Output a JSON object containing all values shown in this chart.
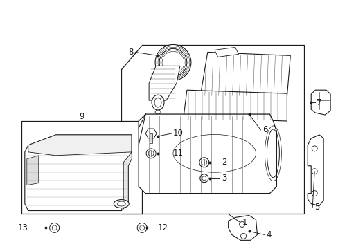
{
  "background_color": "#ffffff",
  "line_color": "#1a1a1a",
  "label_color": "#1a1a1a",
  "fig_width": 4.89,
  "fig_height": 3.6,
  "dpi": 100
}
